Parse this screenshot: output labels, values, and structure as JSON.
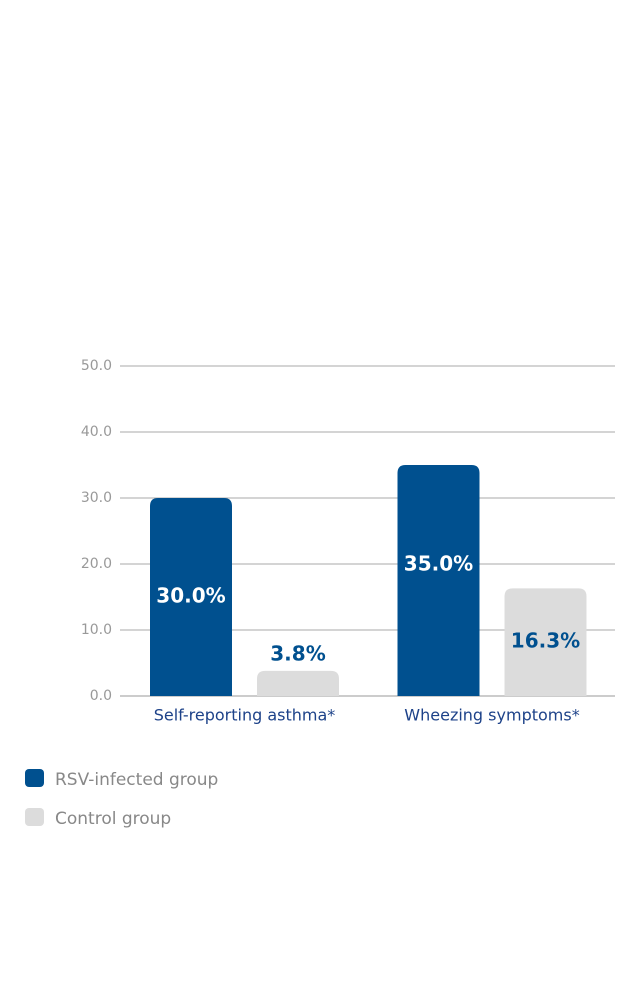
{
  "chart_data": {
    "type": "bar",
    "categories": [
      "Self-reporting asthma*",
      "Wheezing symptoms*"
    ],
    "series": [
      {
        "name": "RSV-infected group",
        "color": "#00508f",
        "values": [
          30.0,
          35.0
        ],
        "value_labels": [
          "30.0%",
          "35.0%"
        ]
      },
      {
        "name": "Control group",
        "color": "#dcdcdc",
        "values": [
          3.8,
          16.3
        ],
        "value_labels": [
          "3.8%",
          "16.3%"
        ]
      }
    ],
    "ylim": [
      0,
      50
    ],
    "yticks": [
      {
        "value": 0,
        "label": "0.0"
      },
      {
        "value": 10,
        "label": "10.0"
      },
      {
        "value": 20,
        "label": "20.0"
      },
      {
        "value": 30,
        "label": "30.0"
      },
      {
        "value": 40,
        "label": "40.0"
      },
      {
        "value": 50,
        "label": "50.0"
      }
    ],
    "grid": true
  }
}
